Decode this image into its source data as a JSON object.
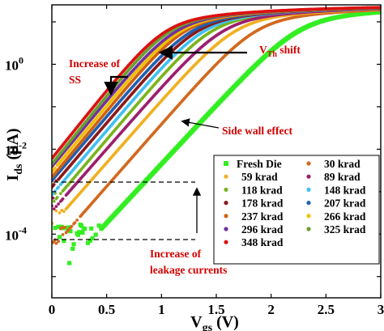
{
  "chart_data": {
    "type": "scatter",
    "xlabel": {
      "main": "V",
      "sub": "gs",
      "unit": " (V)"
    },
    "ylabel": {
      "main": "I",
      "sub": "ds",
      "unit": " (μA)"
    },
    "xlim": [
      0,
      3
    ],
    "ylim_log10": [
      -5.5,
      1.4
    ],
    "y_scale": "log",
    "x_ticks": [
      {
        "value": 0,
        "label": "0"
      },
      {
        "value": 0.5,
        "label": "0.5"
      },
      {
        "value": 1,
        "label": "1"
      },
      {
        "value": 1.5,
        "label": "1.5"
      },
      {
        "value": 2,
        "label": "2"
      },
      {
        "value": 2.5,
        "label": "2.5"
      },
      {
        "value": 3,
        "label": "3"
      }
    ],
    "y_ticks": [
      {
        "exp": 0,
        "base": "10",
        "sup": "0"
      },
      {
        "exp": -2,
        "base": "10",
        "sup": "-2"
      },
      {
        "exp": -4,
        "base": "10",
        "sup": "-4"
      }
    ],
    "series": [
      {
        "name": "Fresh Die",
        "color": "#33ee22",
        "marker": "square",
        "vth": 1.72,
        "ss": 0.36,
        "bjx": 0.9,
        "floor_log": -4.05
      },
      {
        "name": "30 krad",
        "color": "#d2691e",
        "marker": "dot",
        "vth": 1.36,
        "ss": 0.34,
        "bjx": 0.72,
        "floor_log": -3.9
      },
      {
        "name": "59 krad",
        "color": "#f0b020",
        "marker": "dot",
        "vth": 1.17,
        "ss": 0.34,
        "bjx": 0.62,
        "floor_log": -3.6
      },
      {
        "name": "89 krad",
        "color": "#9c1f6e",
        "marker": "dot",
        "vth": 1.06,
        "ss": 0.34,
        "bjx": 0.56,
        "floor_log": -3.4
      },
      {
        "name": "118 krad",
        "color": "#7ab41e",
        "marker": "dot",
        "vth": 0.97,
        "ss": 0.33,
        "bjx": 0.5,
        "floor_log": -3.25
      },
      {
        "name": "148 krad",
        "color": "#40c0f0",
        "marker": "dot",
        "vth": 0.9,
        "ss": 0.33,
        "bjx": 0.45,
        "floor_log": -3.1
      },
      {
        "name": "178 krad",
        "color": "#8b1a1a",
        "marker": "dot",
        "vth": 0.84,
        "ss": 0.33,
        "bjx": 0.41,
        "floor_log": -3.0
      },
      {
        "name": "207 krad",
        "color": "#2060b0",
        "marker": "dot",
        "vth": 0.79,
        "ss": 0.33,
        "bjx": 0.37,
        "floor_log": -2.9
      },
      {
        "name": "237 krad",
        "color": "#d06010",
        "marker": "dot",
        "vth": 0.74,
        "ss": 0.32,
        "bjx": 0.33,
        "floor_log": -2.85
      },
      {
        "name": "266 krad",
        "color": "#f0c000",
        "marker": "dot",
        "vth": 0.7,
        "ss": 0.32,
        "bjx": 0.3,
        "floor_log": -2.8
      },
      {
        "name": "296 krad",
        "color": "#7030a0",
        "marker": "dot",
        "vth": 0.66,
        "ss": 0.32,
        "bjx": 0.27,
        "floor_log": -2.78
      },
      {
        "name": "325 krad",
        "color": "#68a030",
        "marker": "dot",
        "vth": 0.62,
        "ss": 0.31,
        "bjx": 0.24,
        "floor_log": -2.75
      },
      {
        "name": "348 krad",
        "color": "#dd1111",
        "marker": "dot",
        "vth": 0.58,
        "ss": 0.31,
        "bjx": 0.2,
        "floor_log": -2.72
      }
    ],
    "legend_placement": "lower-right",
    "annotations": {
      "increase_ss": {
        "line1": "Increase of",
        "line2": "SS"
      },
      "vth_shift": {
        "prefix": "V",
        "sub": "Th",
        "suffix": " shift"
      },
      "side_wall": "Side wall effect",
      "leakage": {
        "line1": "Increase of",
        "line2": "leakage currents"
      }
    }
  }
}
